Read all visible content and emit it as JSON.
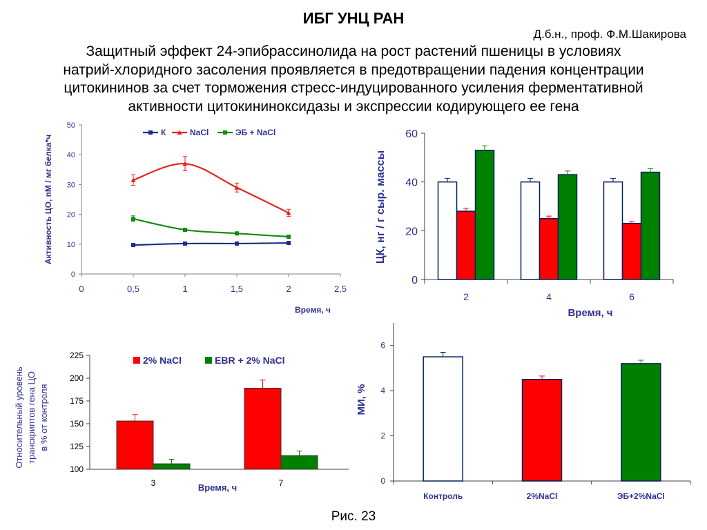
{
  "header": {
    "org_title": "ИБГ УНЦ РАН",
    "author": "Д.б.н., проф. Ф.М.Шакирова",
    "headline_lines": [
      "Защитный эффект 24-эпибрассинолида на рост растений пшеницы в условиях",
      "натрий-хлоридного засоления проявляется в предотвращении падения концентрации",
      "цитокининов за счет торможения стресс-индуцированного усиления ферментативной",
      "активности цитокининоксидазы и экспрессии кодирующего ее гена"
    ]
  },
  "caption": "Рис. 23",
  "colors": {
    "axis_text": "#2e3192",
    "k_line": "#1f2a8c",
    "nacl_line": "#e8201e",
    "eb_line": "#138c13",
    "red_bar": "#ff0000",
    "green_bar": "#008000",
    "white_bar": "#ffffff",
    "bar_outline": "#002060"
  },
  "chart_data": [
    {
      "id": "cko_activity",
      "type": "line",
      "xlabel": "Время, ч",
      "ylabel": "Активность ЦО, пМ / мг белка*ч",
      "xlim": [
        0,
        2.5
      ],
      "ylim": [
        0,
        50
      ],
      "x_ticks": [
        "0",
        "0,5",
        "1",
        "1,5",
        "2",
        "2,5"
      ],
      "y_ticks": [
        "0",
        "10",
        "20",
        "30",
        "40",
        "50"
      ],
      "legend_position": "top",
      "x": [
        0.5,
        1,
        1.5,
        2
      ],
      "series": [
        {
          "name": "К",
          "values": [
            9.7,
            10.2,
            10.2,
            10.4
          ],
          "errors": [
            0.3,
            0.3,
            0.3,
            0.3
          ]
        },
        {
          "name": "NaCl",
          "values": [
            31.5,
            37.0,
            29.0,
            20.5
          ],
          "errors": [
            1.8,
            2.4,
            1.5,
            1.2
          ]
        },
        {
          "name": "ЭБ + NaCl",
          "values": [
            18.5,
            14.8,
            13.6,
            12.5
          ],
          "errors": [
            1.0,
            0.5,
            0.4,
            0.3
          ]
        }
      ]
    },
    {
      "id": "ck_content",
      "type": "bar",
      "xlabel": "Время, ч",
      "ylabel": "ЦК, нг / г сыр. массы",
      "categories": [
        "2",
        "4",
        "6"
      ],
      "ylim": [
        0,
        60
      ],
      "y_ticks": [
        "0",
        "20",
        "40",
        "60"
      ],
      "series": [
        {
          "values": [
            40,
            40,
            40
          ],
          "errors": [
            1.5,
            1.5,
            1.5
          ]
        },
        {
          "values": [
            28,
            25,
            23
          ],
          "errors": [
            1.2,
            1.0,
            0.8
          ]
        },
        {
          "values": [
            53,
            43,
            44
          ],
          "errors": [
            1.8,
            1.5,
            1.5
          ]
        }
      ]
    },
    {
      "id": "gene_transcripts",
      "type": "bar",
      "xlabel": "Время, ч",
      "ylabel_lines": [
        "Относительный уровень",
        "транскриптов гена ЦО",
        "в % от контроля"
      ],
      "categories": [
        "3",
        "7"
      ],
      "ylim": [
        100,
        225
      ],
      "y_ticks": [
        "100",
        "125",
        "150",
        "175",
        "200",
        "225"
      ],
      "legend_position": "top",
      "series": [
        {
          "name": "2% NaCl",
          "values": [
            153,
            189
          ],
          "errors": [
            7,
            9
          ]
        },
        {
          "name": "EBR + 2% NaCl",
          "values": [
            106,
            115
          ],
          "errors": [
            5,
            5
          ]
        }
      ]
    },
    {
      "id": "mitotic_index",
      "type": "bar",
      "ylabel": "МИ, %",
      "categories": [
        "Контроль",
        "2%NaCl",
        "ЭБ+2%NaCl"
      ],
      "ylim": [
        0,
        7
      ],
      "y_ticks": [
        "0",
        "2",
        "4",
        "6"
      ],
      "values": [
        5.5,
        4.5,
        5.2
      ],
      "errors": [
        0.2,
        0.15,
        0.15
      ]
    }
  ]
}
